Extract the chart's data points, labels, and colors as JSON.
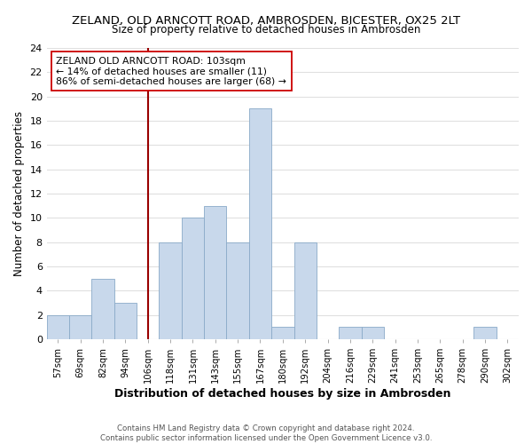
{
  "title": "ZELAND, OLD ARNCOTT ROAD, AMBROSDEN, BICESTER, OX25 2LT",
  "subtitle": "Size of property relative to detached houses in Ambrosden",
  "xlabel": "Distribution of detached houses by size in Ambrosden",
  "ylabel": "Number of detached properties",
  "bin_labels": [
    "57sqm",
    "69sqm",
    "82sqm",
    "94sqm",
    "106sqm",
    "118sqm",
    "131sqm",
    "143sqm",
    "155sqm",
    "167sqm",
    "180sqm",
    "192sqm",
    "204sqm",
    "216sqm",
    "229sqm",
    "241sqm",
    "253sqm",
    "265sqm",
    "278sqm",
    "290sqm",
    "302sqm"
  ],
  "bar_heights": [
    2,
    2,
    5,
    3,
    0,
    8,
    10,
    11,
    8,
    19,
    1,
    8,
    0,
    1,
    1,
    0,
    0,
    0,
    0,
    1,
    0
  ],
  "bar_color": "#c8d8eb",
  "bar_edge_color": "#8aaac8",
  "red_line_index": 4,
  "annotation_title": "ZELAND OLD ARNCOTT ROAD: 103sqm",
  "annotation_line2": "← 14% of detached houses are smaller (11)",
  "annotation_line3": "86% of semi-detached houses are larger (68) →",
  "ylim": [
    0,
    24
  ],
  "yticks": [
    0,
    2,
    4,
    6,
    8,
    10,
    12,
    14,
    16,
    18,
    20,
    22,
    24
  ],
  "footer_line1": "Contains HM Land Registry data © Crown copyright and database right 2024.",
  "footer_line2": "Contains public sector information licensed under the Open Government Licence v3.0.",
  "bg_color": "#ffffff",
  "grid_color": "#e0e0e0"
}
